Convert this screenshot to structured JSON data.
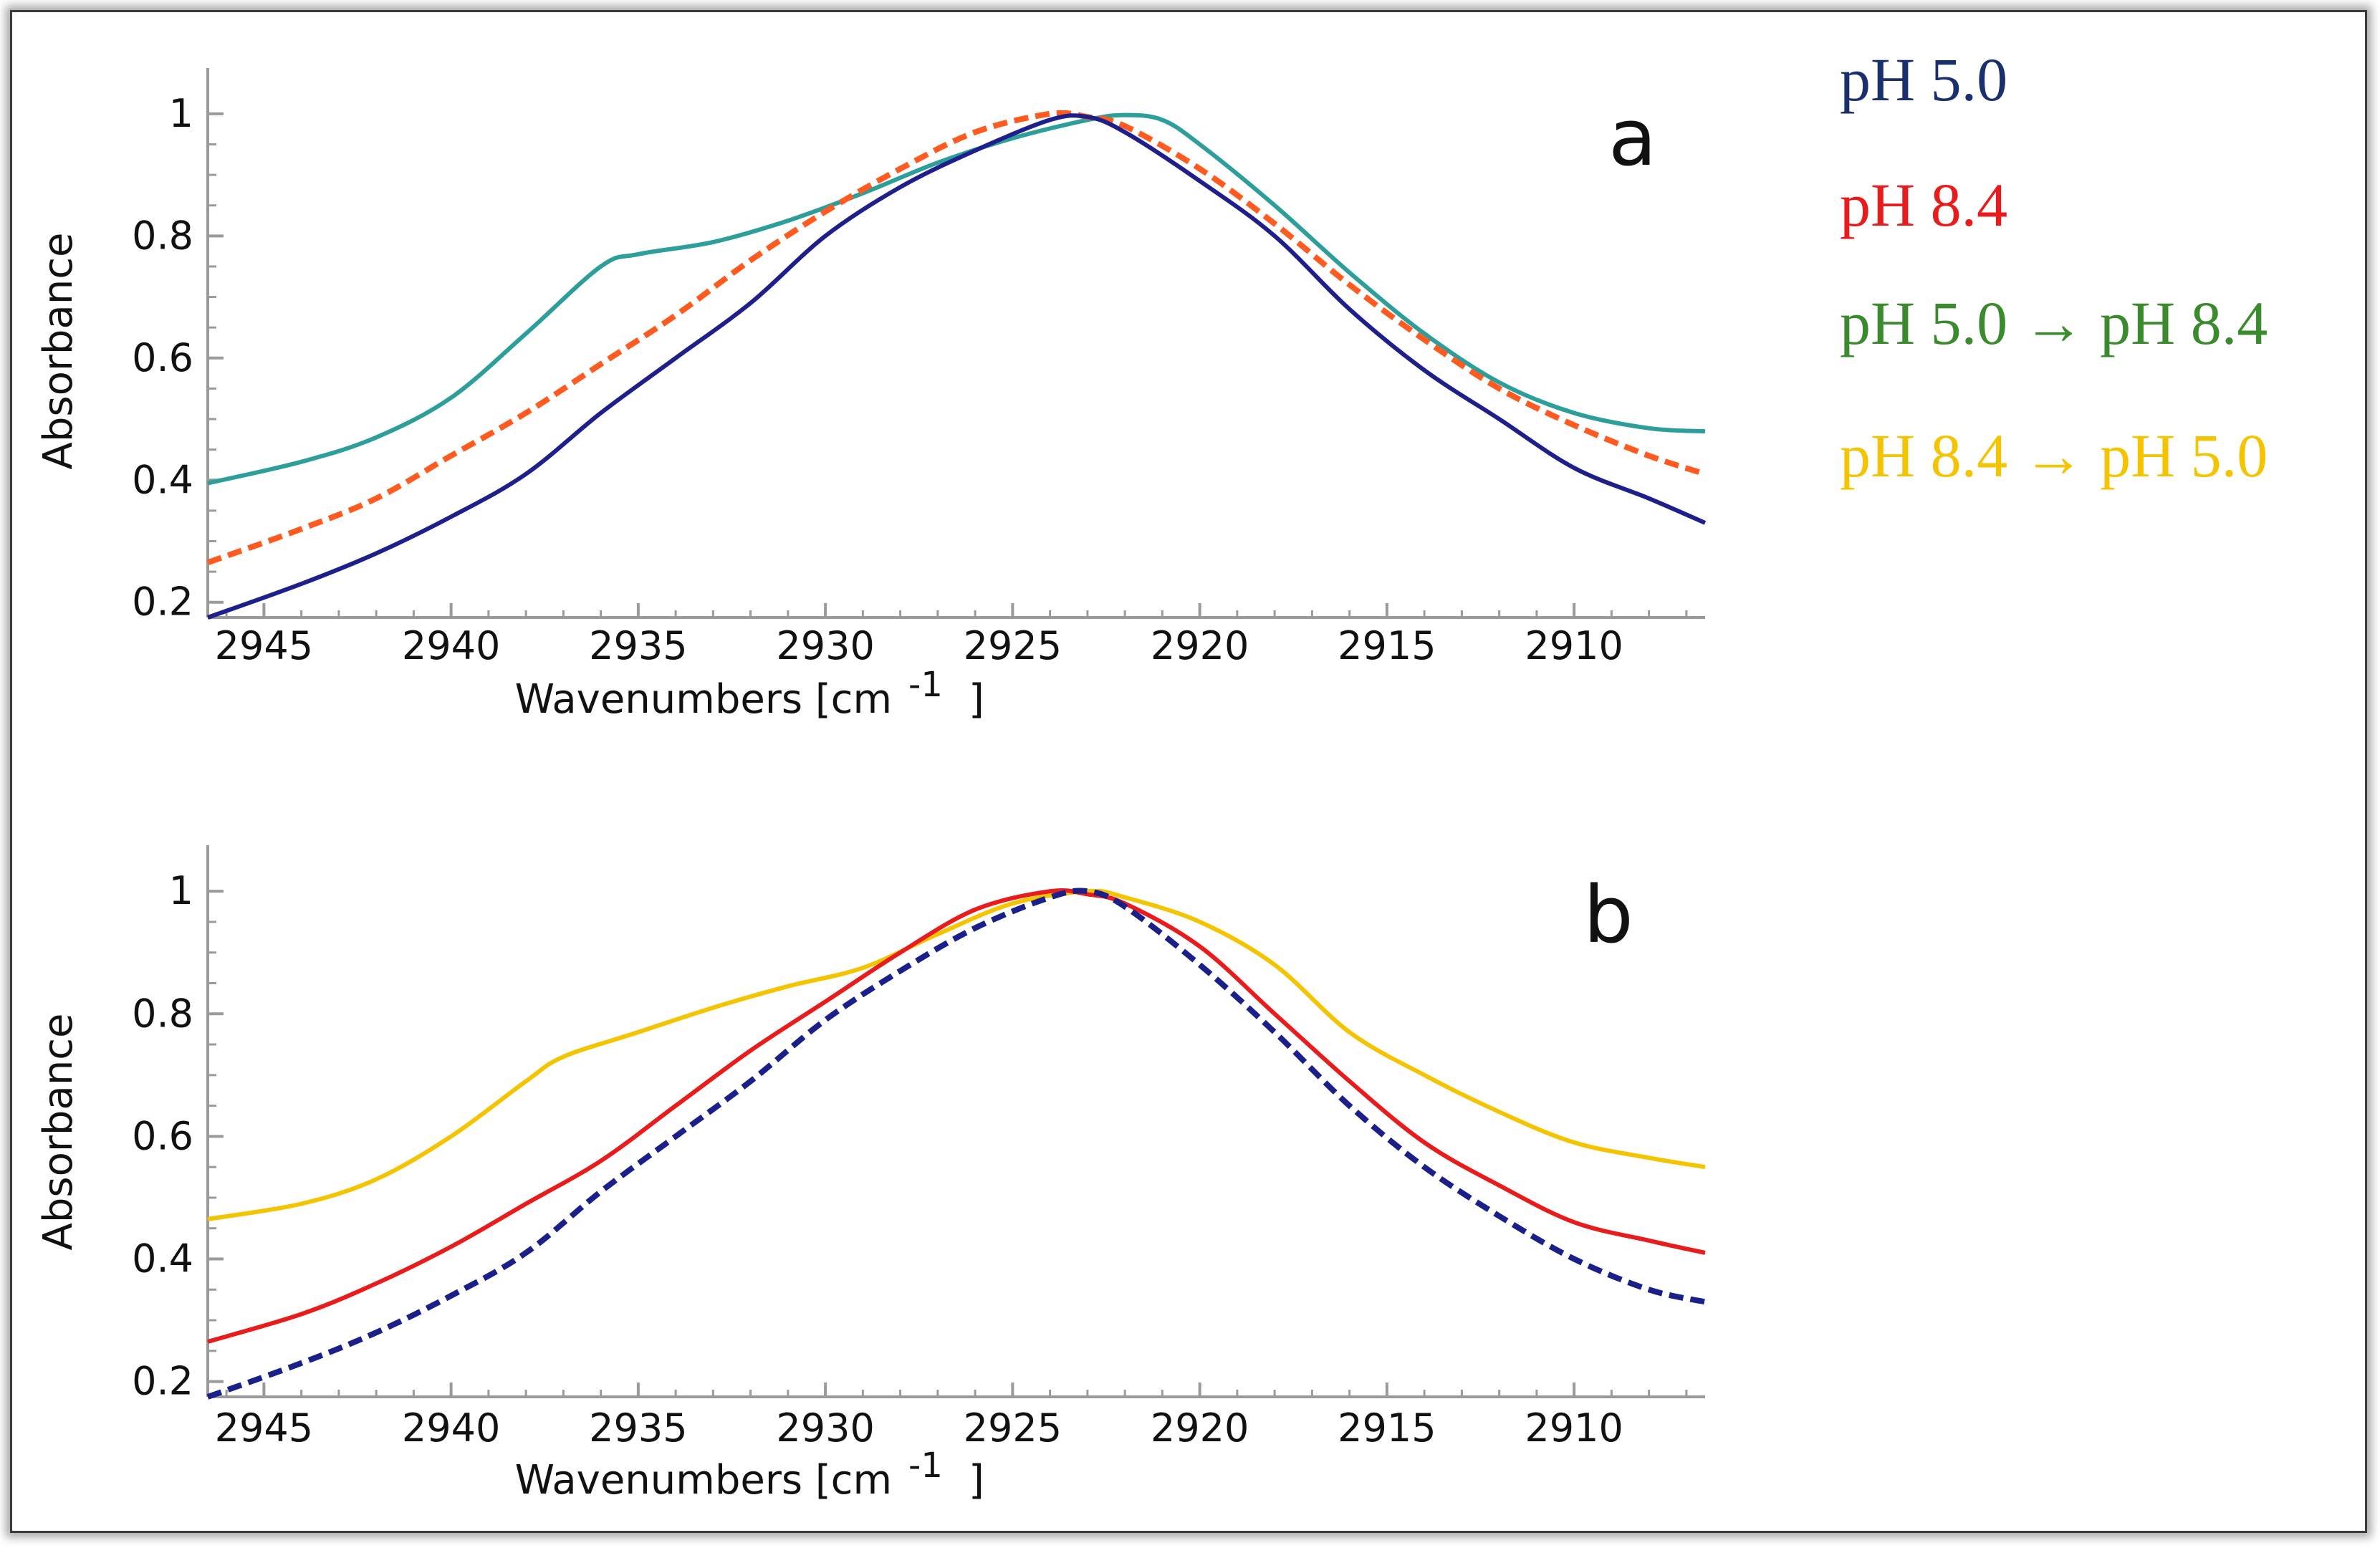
{
  "legend": [
    {
      "label": "pH 5.0",
      "color": "#1a2f6e"
    },
    {
      "label": "pH 8.4",
      "color": "#e81c1c"
    },
    {
      "label": "pH 5.0 → pH 8.4",
      "color": "#3b8a2e"
    },
    {
      "label": "pH 8.4 → pH 5.0",
      "color": "#f5c400"
    }
  ],
  "chart_data": [
    {
      "type": "line",
      "panel_label": "a",
      "xlabel": "Wavenumbers [cm",
      "xlabel_sup": "-1",
      "xlabel_close": "]",
      "ylabel": "Absorbance",
      "xlim": [
        2946.5,
        2906.5
      ],
      "ylim": [
        0.175,
        1.075
      ],
      "x_ticks": [
        2945,
        2940,
        2935,
        2930,
        2925,
        2920,
        2915,
        2910
      ],
      "y_ticks": [
        0.2,
        0.4,
        0.6,
        0.8,
        1
      ],
      "series": [
        {
          "color": "#2e9e9a",
          "dashed": false,
          "x": [
            2946.5,
            2944,
            2942,
            2940,
            2938,
            2936,
            2935,
            2933,
            2931,
            2929,
            2927,
            2925,
            2923,
            2922,
            2921,
            2920,
            2918,
            2916,
            2914,
            2912,
            2910,
            2908,
            2906.5
          ],
          "y": [
            0.395,
            0.43,
            0.47,
            0.535,
            0.64,
            0.75,
            0.77,
            0.79,
            0.825,
            0.87,
            0.92,
            0.96,
            0.99,
            0.998,
            0.99,
            0.95,
            0.85,
            0.74,
            0.64,
            0.56,
            0.51,
            0.485,
            0.48
          ]
        },
        {
          "color": "#ff5a1f",
          "dashed": true,
          "x": [
            2946.5,
            2944,
            2942,
            2940,
            2938,
            2936,
            2934,
            2932,
            2930,
            2928,
            2926,
            2924,
            2923,
            2922,
            2920,
            2918,
            2916,
            2914,
            2912,
            2910,
            2908,
            2906.5
          ],
          "y": [
            0.265,
            0.32,
            0.37,
            0.44,
            0.51,
            0.59,
            0.67,
            0.76,
            0.84,
            0.91,
            0.97,
            1.0,
            0.995,
            0.98,
            0.91,
            0.82,
            0.72,
            0.63,
            0.55,
            0.49,
            0.44,
            0.41
          ]
        },
        {
          "color": "#1f1f8c",
          "dashed": false,
          "x": [
            2946.5,
            2944,
            2942,
            2940,
            2938,
            2936,
            2934,
            2932,
            2930,
            2928,
            2926,
            2924,
            2923,
            2922,
            2920,
            2918,
            2916,
            2914,
            2912,
            2910,
            2908,
            2906.5
          ],
          "y": [
            0.175,
            0.23,
            0.28,
            0.34,
            0.41,
            0.51,
            0.6,
            0.69,
            0.8,
            0.88,
            0.94,
            0.99,
            0.995,
            0.97,
            0.89,
            0.8,
            0.68,
            0.58,
            0.5,
            0.42,
            0.37,
            0.33
          ]
        }
      ]
    },
    {
      "type": "line",
      "panel_label": "b",
      "xlabel": "Wavenumbers [cm",
      "xlabel_sup": "-1",
      "xlabel_close": "]",
      "ylabel": "Absorbance",
      "xlim": [
        2946.5,
        2906.5
      ],
      "ylim": [
        0.175,
        1.075
      ],
      "x_ticks": [
        2945,
        2940,
        2935,
        2930,
        2925,
        2920,
        2915,
        2910
      ],
      "y_ticks": [
        0.2,
        0.4,
        0.6,
        0.8,
        1
      ],
      "series": [
        {
          "color": "#f5c400",
          "dashed": false,
          "x": [
            2946.5,
            2944,
            2942,
            2940,
            2938,
            2937,
            2935,
            2933,
            2931,
            2929,
            2927,
            2925,
            2923,
            2922,
            2920,
            2918,
            2916,
            2914,
            2912,
            2910,
            2908,
            2906.5
          ],
          "y": [
            0.465,
            0.49,
            0.53,
            0.6,
            0.69,
            0.73,
            0.77,
            0.81,
            0.845,
            0.875,
            0.93,
            0.98,
            1.0,
            0.99,
            0.95,
            0.88,
            0.77,
            0.7,
            0.64,
            0.59,
            0.565,
            0.55
          ]
        },
        {
          "color": "#e81c1c",
          "dashed": false,
          "x": [
            2946.5,
            2944,
            2942,
            2940,
            2938,
            2936,
            2934,
            2932,
            2930,
            2928,
            2926,
            2924,
            2923,
            2922,
            2920,
            2918,
            2916,
            2914,
            2912,
            2910,
            2908,
            2906.5
          ],
          "y": [
            0.265,
            0.31,
            0.36,
            0.42,
            0.49,
            0.56,
            0.65,
            0.74,
            0.82,
            0.9,
            0.97,
            1.0,
            0.995,
            0.98,
            0.91,
            0.8,
            0.69,
            0.59,
            0.52,
            0.46,
            0.43,
            0.41
          ]
        },
        {
          "color": "#1a1f8a",
          "dashed": true,
          "x": [
            2946.5,
            2944,
            2942,
            2940,
            2938,
            2936,
            2934,
            2932,
            2930,
            2928,
            2926,
            2924,
            2923,
            2922,
            2920,
            2918,
            2916,
            2914,
            2912,
            2910,
            2908,
            2906.5
          ],
          "y": [
            0.175,
            0.23,
            0.28,
            0.34,
            0.41,
            0.51,
            0.6,
            0.69,
            0.79,
            0.87,
            0.94,
            0.99,
            1.0,
            0.975,
            0.88,
            0.77,
            0.65,
            0.55,
            0.47,
            0.4,
            0.35,
            0.33
          ]
        }
      ]
    }
  ]
}
